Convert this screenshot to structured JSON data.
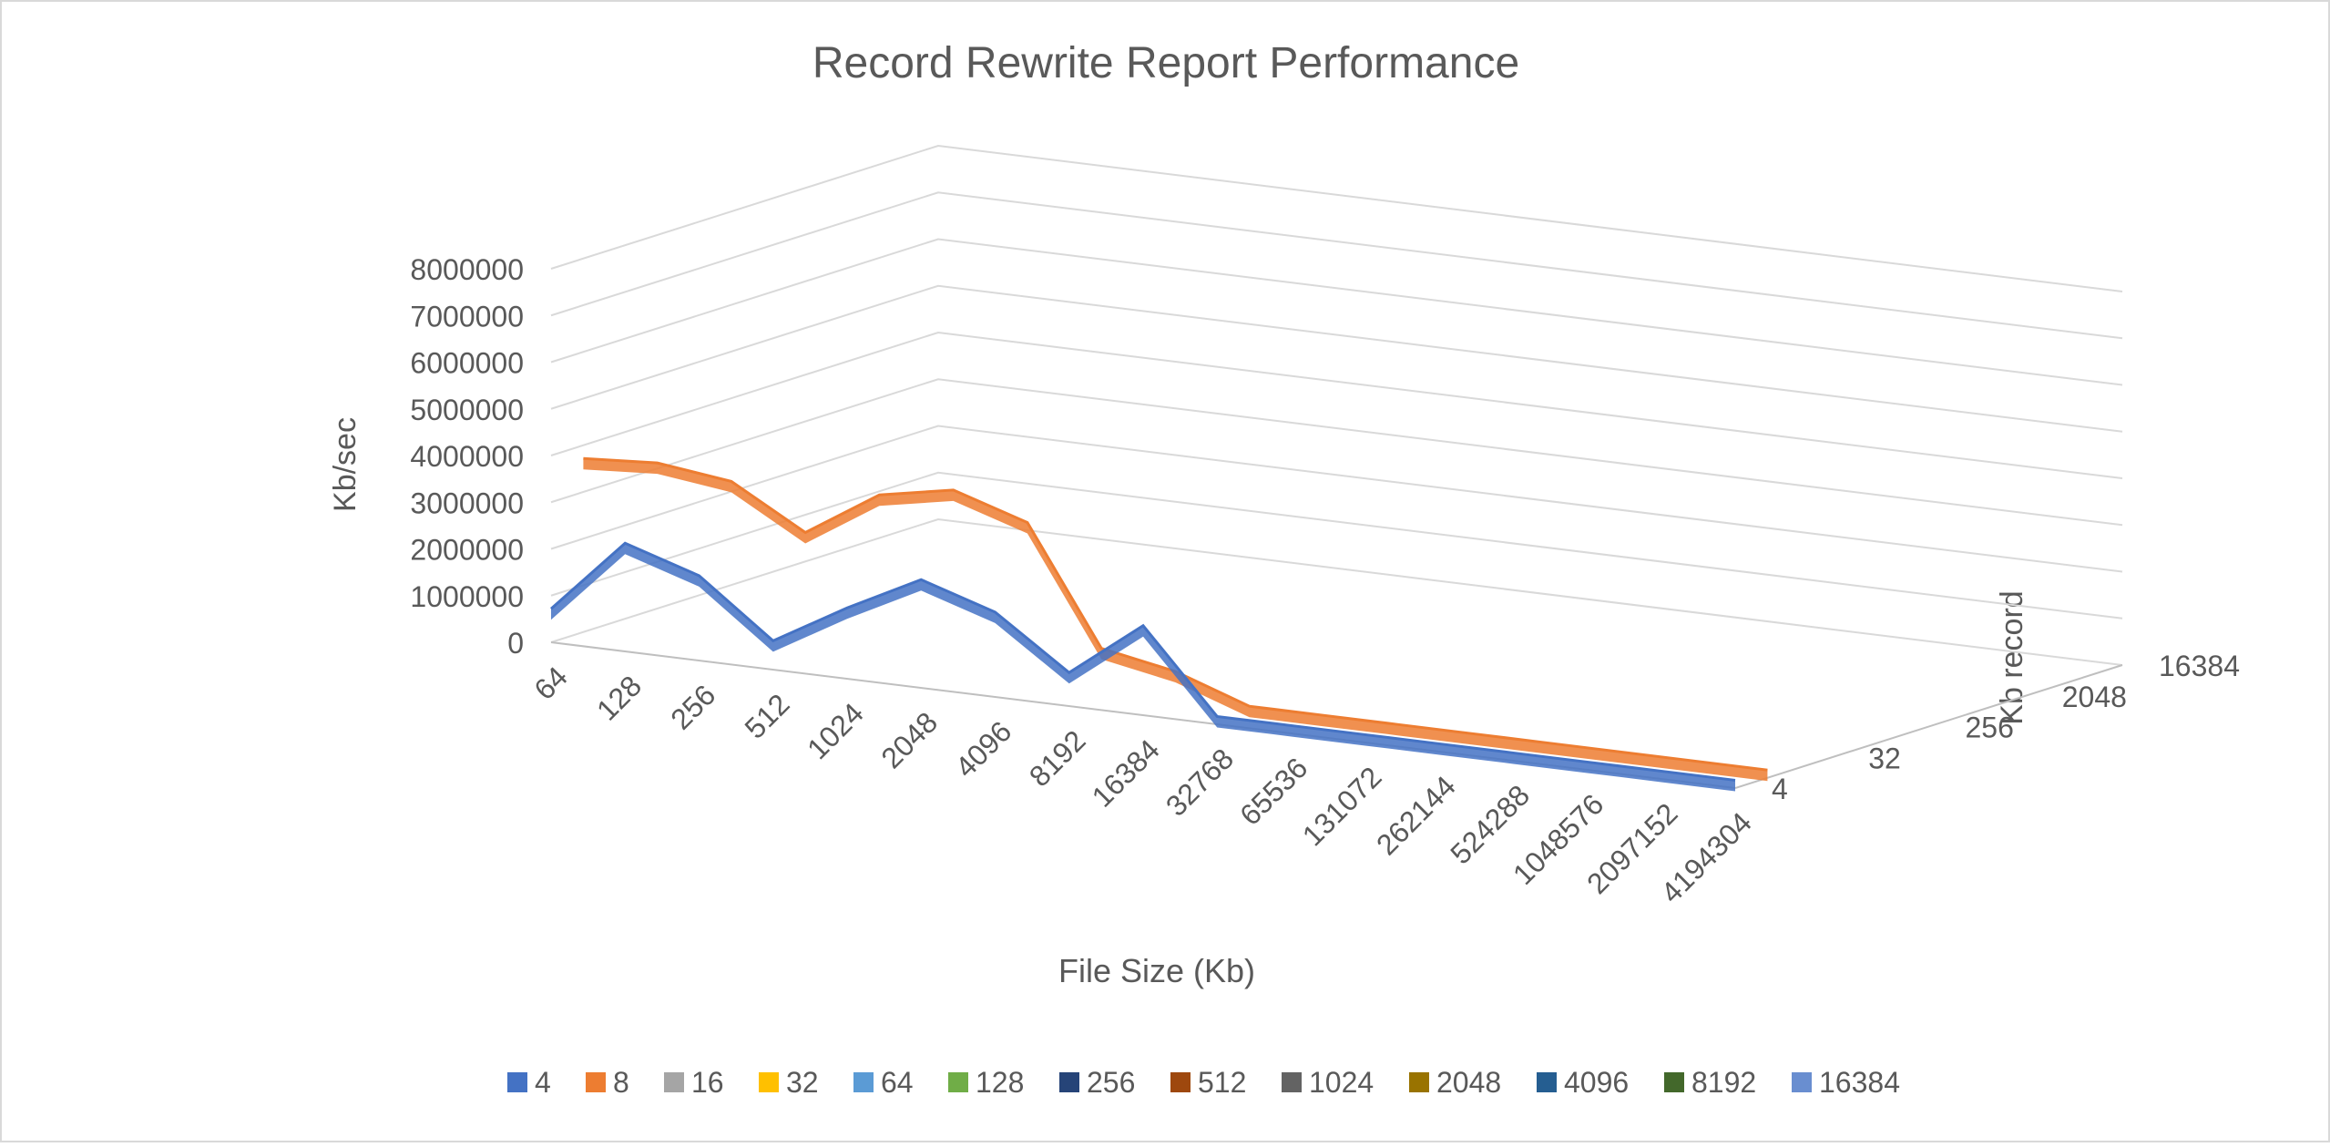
{
  "chart_data": {
    "type": "line",
    "title": "Record Rewrite Report Performance",
    "xlabel": "File Size (Kb)",
    "ylabel": "Kb/sec",
    "zlabel": "Kb record",
    "ylim": [
      0,
      8000000
    ],
    "y_ticks": [
      "0",
      "1000000",
      "2000000",
      "3000000",
      "4000000",
      "5000000",
      "6000000",
      "7000000",
      "8000000"
    ],
    "categories": [
      "64",
      "128",
      "256",
      "512",
      "1024",
      "2048",
      "4096",
      "8192",
      "16384",
      "32768",
      "65536",
      "131072",
      "262144",
      "524288",
      "1048576",
      "2097152",
      "4194304"
    ],
    "z_ticks": [
      "4",
      "32",
      "256",
      "2048",
      "16384"
    ],
    "legend_position": "bottom",
    "grid": true,
    "series": [
      {
        "name": "4",
        "color": "#4472C4",
        "values": [
          600000,
          2200000,
          1700000,
          500000,
          1400000,
          2200000,
          1700000,
          600000,
          1800000,
          50000,
          50000,
          50000,
          50000,
          50000,
          50000,
          50000,
          50000
        ]
      },
      {
        "name": "8",
        "color": "#ED7D31",
        "values": [
          3600000,
          3700000,
          3500000,
          2600000,
          3600000,
          3900000,
          3400000,
          900000,
          600000,
          50000,
          50000,
          50000,
          50000,
          50000,
          50000,
          50000,
          50000
        ]
      },
      {
        "name": "16",
        "color": "#A5A5A5",
        "values": null
      },
      {
        "name": "32",
        "color": "#FFC000",
        "values": null
      },
      {
        "name": "64",
        "color": "#5B9BD5",
        "values": null
      },
      {
        "name": "128",
        "color": "#70AD47",
        "values": null
      },
      {
        "name": "256",
        "color": "#264478",
        "values": null
      },
      {
        "name": "512",
        "color": "#9E480E",
        "values": null
      },
      {
        "name": "1024",
        "color": "#636363",
        "values": null
      },
      {
        "name": "2048",
        "color": "#997300",
        "values": null
      },
      {
        "name": "4096",
        "color": "#255E91",
        "values": null
      },
      {
        "name": "8192",
        "color": "#43682B",
        "values": null
      },
      {
        "name": "16384",
        "color": "#698ED0",
        "values": null
      }
    ]
  }
}
